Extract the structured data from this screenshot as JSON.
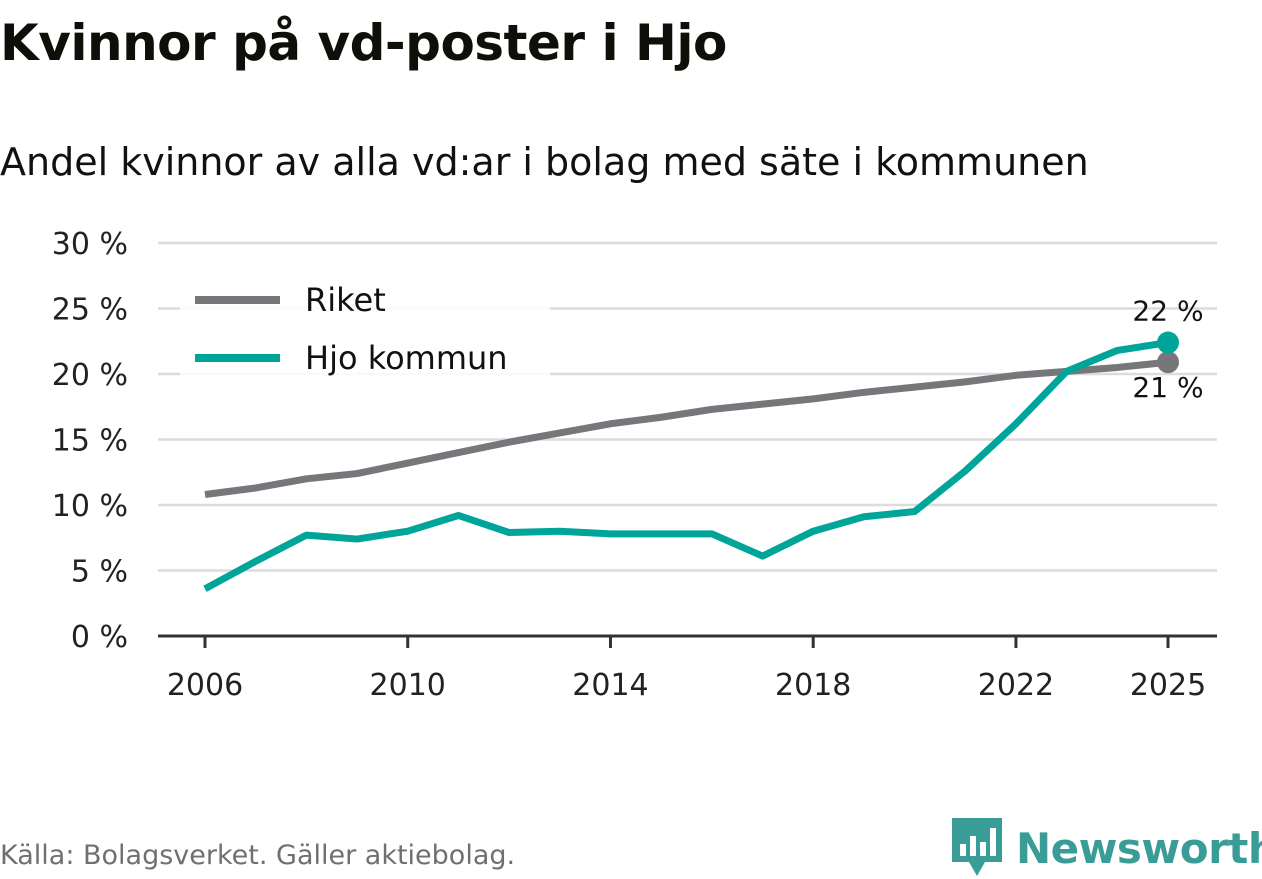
{
  "chart_data": {
    "type": "line",
    "title": "Kvinnor på vd-poster i Hjo",
    "subtitle": "Andel kvinnor av alla vd:ar i bolag med säte i kommunen",
    "xlabel": "",
    "ylabel": "",
    "xlim": [
      2006,
      2025
    ],
    "ylim": [
      0,
      30
    ],
    "x_ticks": [
      2006,
      2010,
      2014,
      2018,
      2022,
      2025
    ],
    "y_ticks": [
      0,
      5,
      10,
      15,
      20,
      25,
      30
    ],
    "y_tick_labels": [
      "0 %",
      "5 %",
      "10 %",
      "15 %",
      "20 %",
      "25 %",
      "30 %"
    ],
    "x": [
      2006,
      2007,
      2008,
      2009,
      2010,
      2011,
      2012,
      2013,
      2014,
      2015,
      2016,
      2017,
      2018,
      2019,
      2020,
      2021,
      2022,
      2023,
      2024,
      2025
    ],
    "series": [
      {
        "name": "Riket",
        "color": "#77767b",
        "values": [
          10.8,
          11.3,
          12.0,
          12.4,
          13.2,
          14.0,
          14.8,
          15.5,
          16.2,
          16.7,
          17.3,
          17.7,
          18.1,
          18.6,
          19.0,
          19.4,
          19.9,
          20.2,
          20.5,
          20.9
        ],
        "end_label": "21 %"
      },
      {
        "name": "Hjo kommun",
        "color": "#00a599",
        "values": [
          3.6,
          5.7,
          7.7,
          7.4,
          8.0,
          9.2,
          7.9,
          8.0,
          7.8,
          7.8,
          7.8,
          6.1,
          8.0,
          9.1,
          9.5,
          12.6,
          16.2,
          20.2,
          21.8,
          22.4
        ],
        "end_label": "22 %"
      }
    ],
    "legend_position": "top-left",
    "grid": true
  },
  "source": "Källa: Bolagsverket. Gäller aktiebolag.",
  "brand": {
    "name": "Newsworthy",
    "icon": "newsworthy-logo-icon",
    "color": "#3a9c96"
  }
}
